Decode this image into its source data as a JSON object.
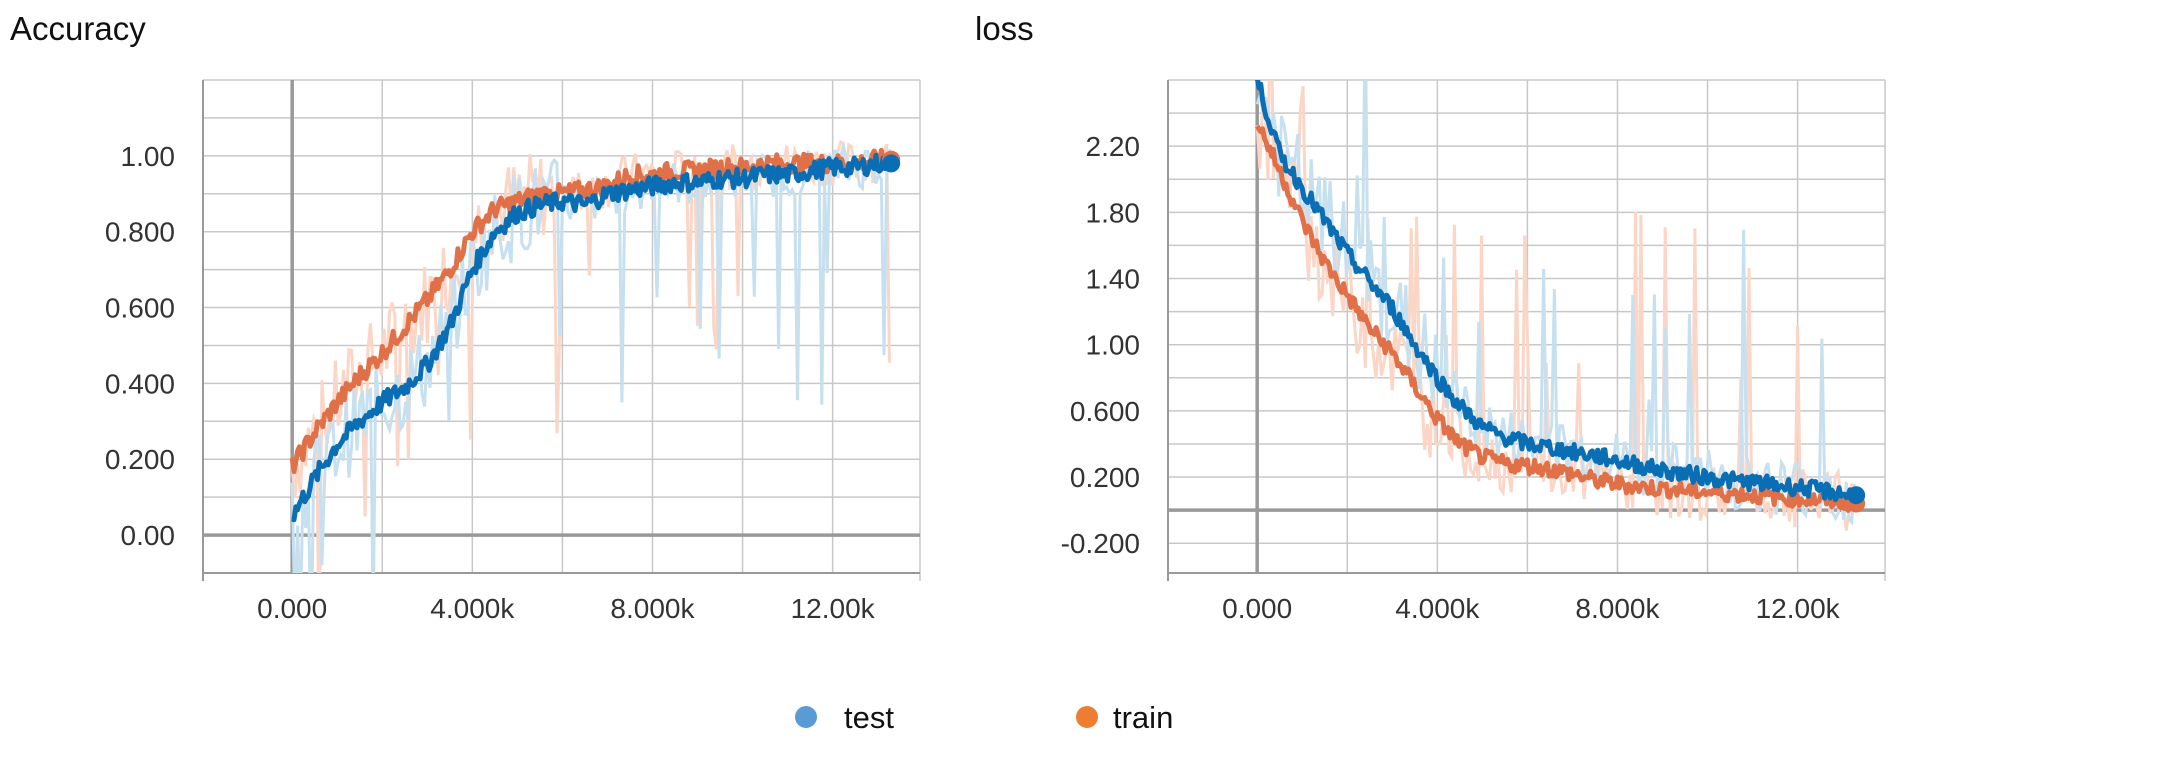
{
  "legend": [
    {
      "name": "test",
      "color": "#5b9bd5"
    },
    {
      "name": "train",
      "color": "#ed7d31"
    }
  ],
  "colors": {
    "test_line": "#0a6eb4",
    "test_raw": "#c6e0f0",
    "train_line": "#e07048",
    "train_raw": "#fbd6c6",
    "grid": "#c8c8c8",
    "zero_axis": "#999999"
  },
  "chart_data": [
    {
      "type": "line",
      "title": "Accuracy",
      "xlim": [
        -1980,
        13940
      ],
      "ylim": [
        -0.1,
        1.2
      ],
      "x_ticks": [
        0,
        4000,
        8000,
        12000
      ],
      "x_tick_labels": [
        "0.000",
        "4.000k",
        "8.000k",
        "12.00k"
      ],
      "y_ticks": [
        0,
        0.2,
        0.4,
        0.6,
        0.8,
        1.0
      ],
      "y_tick_labels": [
        "0.00",
        "0.200",
        "0.400",
        "0.600",
        "0.800",
        "1.00"
      ],
      "grid": true,
      "legend_position": "bottom",
      "series": [
        {
          "name": "test",
          "x": [
            0,
            500,
            1000,
            1500,
            2000,
            2500,
            3000,
            3500,
            4000,
            4500,
            5000,
            5500,
            6000,
            6500,
            7000,
            7500,
            8000,
            8500,
            9000,
            9500,
            10000,
            10500,
            11000,
            11500,
            12000,
            12500,
            13000,
            13300
          ],
          "y": [
            0.05,
            0.15,
            0.24,
            0.3,
            0.35,
            0.39,
            0.45,
            0.55,
            0.7,
            0.8,
            0.85,
            0.87,
            0.88,
            0.87,
            0.9,
            0.91,
            0.92,
            0.93,
            0.93,
            0.94,
            0.94,
            0.95,
            0.95,
            0.96,
            0.97,
            0.97,
            0.98,
            0.98
          ]
        },
        {
          "name": "train",
          "x": [
            0,
            500,
            1000,
            1500,
            2000,
            2500,
            3000,
            3500,
            4000,
            4500,
            5000,
            5500,
            6000,
            6500,
            7000,
            7500,
            8000,
            8500,
            9000,
            9500,
            10000,
            10500,
            11000,
            11500,
            12000,
            12500,
            13000,
            13300
          ],
          "y": [
            0.18,
            0.27,
            0.35,
            0.42,
            0.48,
            0.55,
            0.62,
            0.7,
            0.8,
            0.86,
            0.88,
            0.9,
            0.9,
            0.91,
            0.92,
            0.95,
            0.95,
            0.96,
            0.96,
            0.97,
            0.97,
            0.98,
            0.98,
            0.98,
            0.98,
            0.98,
            0.99,
            0.99
          ]
        }
      ]
    },
    {
      "type": "line",
      "title": "loss",
      "xlim": [
        -1980,
        13940
      ],
      "ylim": [
        -0.38,
        2.6
      ],
      "x_ticks": [
        0,
        4000,
        8000,
        12000
      ],
      "x_tick_labels": [
        "0.000",
        "4.000k",
        "8.000k",
        "12.00k"
      ],
      "y_ticks": [
        -0.2,
        0.2,
        0.6,
        1.0,
        1.4,
        1.8,
        2.2
      ],
      "y_tick_labels": [
        "-0.200",
        "0.200",
        "0.600",
        "1.00",
        "1.40",
        "1.80",
        "2.20"
      ],
      "grid": true,
      "legend_position": "bottom",
      "series": [
        {
          "name": "test",
          "x": [
            0,
            500,
            1000,
            1500,
            2000,
            2500,
            3000,
            3500,
            4000,
            4500,
            5000,
            5500,
            6000,
            6500,
            7000,
            7500,
            8000,
            8500,
            9000,
            9500,
            10000,
            10500,
            11000,
            11500,
            12000,
            12500,
            13000,
            13300
          ],
          "y": [
            2.6,
            2.15,
            1.95,
            1.75,
            1.55,
            1.38,
            1.22,
            1.0,
            0.8,
            0.63,
            0.5,
            0.44,
            0.4,
            0.38,
            0.35,
            0.33,
            0.3,
            0.27,
            0.24,
            0.22,
            0.2,
            0.18,
            0.17,
            0.15,
            0.14,
            0.12,
            0.1,
            0.09
          ]
        },
        {
          "name": "train",
          "x": [
            0,
            500,
            1000,
            1500,
            2000,
            2500,
            3000,
            3500,
            4000,
            4500,
            5000,
            5500,
            6000,
            6500,
            7000,
            7500,
            8000,
            8500,
            9000,
            9500,
            10000,
            10500,
            11000,
            11500,
            12000,
            12500,
            13000,
            13300
          ],
          "y": [
            2.35,
            2.05,
            1.75,
            1.5,
            1.3,
            1.1,
            0.95,
            0.75,
            0.55,
            0.4,
            0.32,
            0.28,
            0.27,
            0.25,
            0.22,
            0.18,
            0.16,
            0.14,
            0.13,
            0.12,
            0.11,
            0.1,
            0.09,
            0.08,
            0.07,
            0.06,
            0.05,
            0.04
          ]
        }
      ]
    }
  ]
}
